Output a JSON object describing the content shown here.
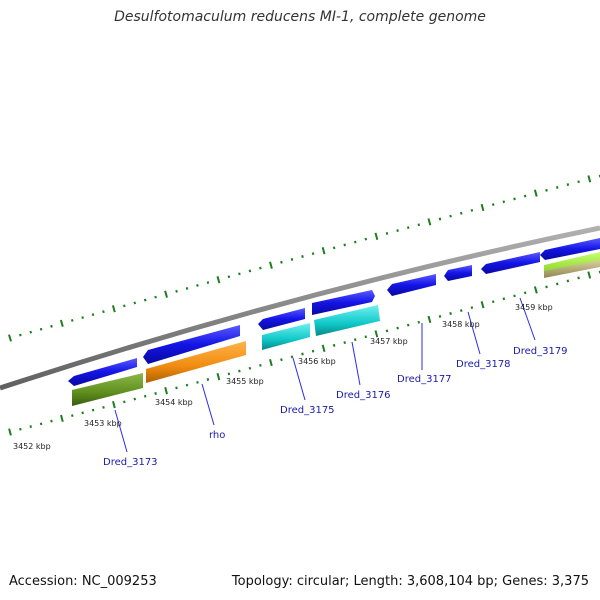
{
  "title": "Desulfotomaculum reducens MI-1, complete genome",
  "footer": {
    "accession": "Accession: NC_009253",
    "stats": "Topology: circular; Length: 3,608,104 bp; Genes: 3,375"
  },
  "scale_labels": [
    {
      "text": "3452 kbp",
      "kbp": 3452
    },
    {
      "text": "3453 kbp",
      "kbp": 3453
    },
    {
      "text": "3454 kbp",
      "kbp": 3454
    },
    {
      "text": "3455 kbp",
      "kbp": 3455
    },
    {
      "text": "3456 kbp",
      "kbp": 3456
    },
    {
      "text": "3457 kbp",
      "kbp": 3457
    },
    {
      "text": "3458 kbp",
      "kbp": 3458
    },
    {
      "text": "3459 kbp",
      "kbp": 3459
    }
  ],
  "gene_labels": [
    {
      "text": "Dred_3173"
    },
    {
      "text": "rho"
    },
    {
      "text": "Dred_3175"
    },
    {
      "text": "Dred_3176"
    },
    {
      "text": "Dred_3177"
    },
    {
      "text": "Dred_3178"
    },
    {
      "text": "Dred_3179"
    }
  ],
  "colors": {
    "backbone": "#888888",
    "cds": "#1010e0",
    "rho_cog": "#f08c10",
    "cog_olive": "#5e8e1e",
    "cog_cyan": "#10c8c8",
    "cog_lime": "#90e030",
    "cog_tan": "#b8b078",
    "ticks": "#1e7e1e",
    "labels": "#1a1aa8"
  }
}
